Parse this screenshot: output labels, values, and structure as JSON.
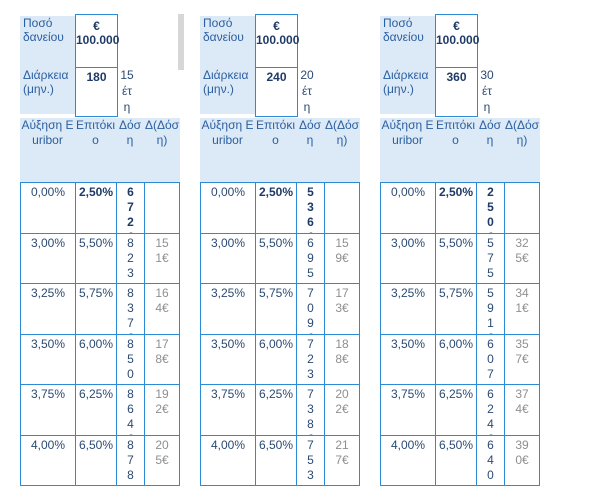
{
  "labels": {
    "amount": "Ποσό δανείου",
    "duration": "Διάρκεια (μην.)",
    "col_euribor": "Αύξηση Euribor",
    "col_rate": "Επιτόκιο",
    "col_installment": "Δόση",
    "col_diff": "Δ(Δόση)"
  },
  "panels": [
    {
      "amount": "€ 100.000",
      "months": "180",
      "years": "15 έτη",
      "rows": [
        {
          "euribor": "0,00%",
          "rate": "2,50%",
          "installment": "672€",
          "diff": ""
        },
        {
          "euribor": "3,00%",
          "rate": "5,50%",
          "installment": "823€",
          "diff": "151€"
        },
        {
          "euribor": "3,25%",
          "rate": "5,75%",
          "installment": "837€",
          "diff": "164€"
        },
        {
          "euribor": "3,50%",
          "rate": "6,00%",
          "installment": "850€",
          "diff": "178€"
        },
        {
          "euribor": "3,75%",
          "rate": "6,25%",
          "installment": "864€",
          "diff": "192€"
        },
        {
          "euribor": "4,00%",
          "rate": "6,50%",
          "installment": "878€",
          "diff": "205€"
        }
      ]
    },
    {
      "amount": "€ 100.000",
      "months": "240",
      "years": "20 έτη",
      "rows": [
        {
          "euribor": "0,00%",
          "rate": "2,50%",
          "installment": "536€",
          "diff": ""
        },
        {
          "euribor": "3,00%",
          "rate": "5,50%",
          "installment": "695€",
          "diff": "159€"
        },
        {
          "euribor": "3,25%",
          "rate": "5,75%",
          "installment": "709€",
          "diff": "173€"
        },
        {
          "euribor": "3,50%",
          "rate": "6,00%",
          "installment": "723€",
          "diff": "188€"
        },
        {
          "euribor": "3,75%",
          "rate": "6,25%",
          "installment": "738€",
          "diff": "202€"
        },
        {
          "euribor": "4,00%",
          "rate": "6,50%",
          "installment": "753€",
          "diff": "217€"
        }
      ]
    },
    {
      "amount": "€ 100.000",
      "months": "360",
      "years": "30 έτη",
      "rows": [
        {
          "euribor": "0,00%",
          "rate": "2,50%",
          "installment": "250€",
          "diff": ""
        },
        {
          "euribor": "3,00%",
          "rate": "5,50%",
          "installment": "575€",
          "diff": "325€"
        },
        {
          "euribor": "3,25%",
          "rate": "5,75%",
          "installment": "591€",
          "diff": "341€"
        },
        {
          "euribor": "3,50%",
          "rate": "6,00%",
          "installment": "607€",
          "diff": "357€"
        },
        {
          "euribor": "3,75%",
          "rate": "6,25%",
          "installment": "624€",
          "diff": "374€"
        },
        {
          "euribor": "4,00%",
          "rate": "6,50%",
          "installment": "640€",
          "diff": "390€"
        }
      ]
    }
  ]
}
